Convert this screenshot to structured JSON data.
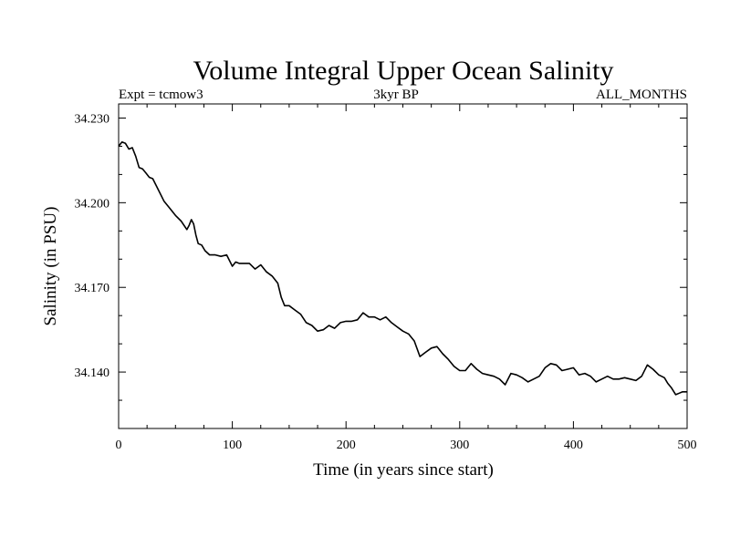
{
  "chart_data": {
    "type": "line",
    "title": "Volume Integral Upper Ocean Salinity",
    "subtitle_left": "Expt = tcmow3",
    "subtitle_center": "3kyr BP",
    "subtitle_right": "ALL_MONTHS",
    "xlabel": "Time (in years since start)",
    "ylabel": "Salinity (in PSU)",
    "xlim": [
      0,
      500
    ],
    "ylim": [
      34.12,
      34.235
    ],
    "xticks": [
      0,
      100,
      200,
      300,
      400,
      500
    ],
    "xtick_labels": [
      "0",
      "100",
      "200",
      "300",
      "400",
      "500"
    ],
    "yticks": [
      34.14,
      34.17,
      34.2,
      34.23
    ],
    "ytick_labels": [
      "34.140",
      "34.170",
      "34.200",
      "34.230"
    ],
    "grid": false,
    "series": [
      {
        "name": "Salinity",
        "color": "#000000",
        "x": [
          0,
          3,
          6,
          9,
          12,
          15,
          18,
          21,
          24,
          27,
          30,
          35,
          40,
          45,
          50,
          55,
          60,
          62,
          64,
          66,
          68,
          70,
          73,
          76,
          80,
          85,
          90,
          95,
          100,
          103,
          106,
          110,
          115,
          120,
          125,
          130,
          135,
          140,
          143,
          146,
          150,
          155,
          160,
          165,
          170,
          175,
          180,
          185,
          190,
          195,
          200,
          205,
          210,
          215,
          220,
          225,
          230,
          235,
          240,
          245,
          250,
          255,
          260,
          265,
          270,
          275,
          280,
          285,
          290,
          295,
          300,
          305,
          310,
          315,
          320,
          325,
          330,
          335,
          340,
          345,
          350,
          355,
          360,
          365,
          370,
          375,
          380,
          385,
          390,
          395,
          400,
          405,
          410,
          415,
          420,
          425,
          430,
          435,
          440,
          445,
          450,
          455,
          460,
          465,
          470,
          475,
          480,
          483,
          486,
          490,
          493,
          496,
          500
        ],
        "values": [
          34.22,
          34.2215,
          34.221,
          34.219,
          34.2195,
          34.2165,
          34.2125,
          34.212,
          34.2105,
          34.209,
          34.2085,
          34.2045,
          34.2005,
          34.198,
          34.1955,
          34.1935,
          34.1905,
          34.192,
          34.194,
          34.1925,
          34.1885,
          34.1855,
          34.185,
          34.183,
          34.1815,
          34.1815,
          34.181,
          34.1815,
          34.1775,
          34.179,
          34.1785,
          34.1785,
          34.1785,
          34.1765,
          34.178,
          34.1755,
          34.174,
          34.1715,
          34.1665,
          34.1635,
          34.1635,
          34.162,
          34.1605,
          34.1575,
          34.1565,
          34.1545,
          34.155,
          34.1565,
          34.1555,
          34.1575,
          34.158,
          34.158,
          34.1585,
          34.161,
          34.1595,
          34.1595,
          34.1585,
          34.1595,
          34.1575,
          34.156,
          34.1545,
          34.1535,
          34.151,
          34.1455,
          34.147,
          34.1485,
          34.149,
          34.1465,
          34.1445,
          34.142,
          34.1405,
          34.1405,
          34.143,
          34.141,
          34.1395,
          34.139,
          34.1385,
          34.1375,
          34.1355,
          34.1395,
          34.139,
          34.138,
          34.1365,
          34.1375,
          34.1385,
          34.1415,
          34.143,
          34.1425,
          34.1405,
          34.141,
          34.1415,
          34.139,
          34.1395,
          34.1385,
          34.1365,
          34.1375,
          34.1385,
          34.1375,
          34.1375,
          34.138,
          34.1375,
          34.137,
          34.1385,
          34.1425,
          34.141,
          34.139,
          34.138,
          34.136,
          34.1345,
          34.132,
          34.1325,
          34.133,
          34.133
        ]
      }
    ]
  }
}
